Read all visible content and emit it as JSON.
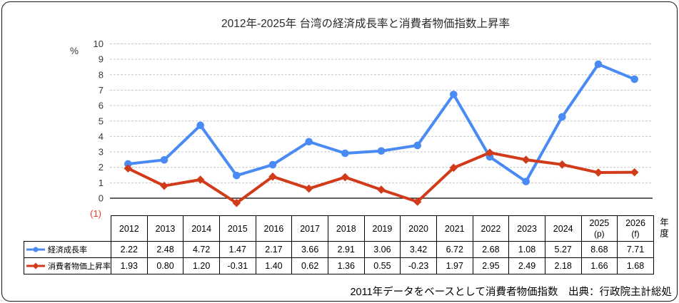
{
  "caption": "2011年データをベースとして消費者物価指数　出典：行政院主計総処",
  "chart_data": {
    "type": "line",
    "title": "2012年-2025年 台湾の経済成長率と消費者物価指数上昇率",
    "unit_label": "%",
    "x_axis_label": "年度",
    "negative_one_label": "(1)",
    "negative_label_color": "#e93a2e",
    "ylim": [
      -1,
      10
    ],
    "yticks": [
      10,
      9,
      8,
      7,
      6,
      5,
      4,
      3,
      2,
      1,
      0
    ],
    "grid": true,
    "legend_position": "table-left",
    "categories": [
      "2012",
      "2013",
      "2014",
      "2015",
      "2016",
      "2017",
      "2018",
      "2019",
      "2020",
      "2021",
      "2022",
      "2023",
      "2024",
      "2025",
      "2026"
    ],
    "category_notes": [
      "",
      "",
      "",
      "",
      "",
      "",
      "",
      "",
      "",
      "",
      "",
      "",
      "",
      "(p)",
      "(f)"
    ],
    "series": [
      {
        "name": "経済成長率",
        "color": "#4a8af4",
        "marker": "circle",
        "values": [
          2.22,
          2.48,
          4.72,
          1.47,
          2.17,
          3.66,
          2.91,
          3.06,
          3.42,
          6.72,
          2.68,
          1.08,
          5.27,
          8.68,
          7.71
        ]
      },
      {
        "name": "消費者物価上昇率",
        "color": "#d23b1a",
        "marker": "diamond",
        "values": [
          1.93,
          0.8,
          1.2,
          -0.31,
          1.4,
          0.62,
          1.36,
          0.55,
          -0.23,
          1.97,
          2.95,
          2.49,
          2.18,
          1.66,
          1.68
        ]
      }
    ]
  }
}
